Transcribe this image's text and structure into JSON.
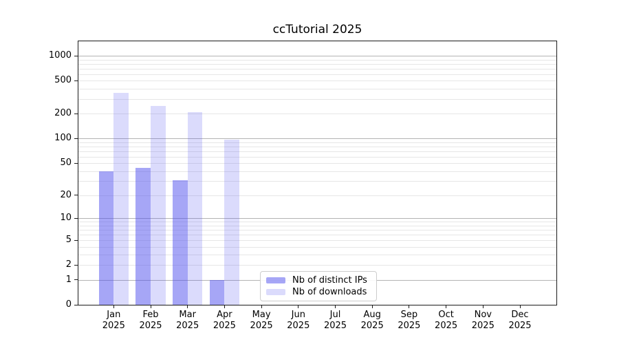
{
  "figure": {
    "background": "#ffffff"
  },
  "chart_data": {
    "type": "bar",
    "title": "ccTutorial 2025",
    "categories": [
      "Jan",
      "Feb",
      "Mar",
      "Apr",
      "May",
      "Jun",
      "Jul",
      "Aug",
      "Sep",
      "Oct",
      "Nov",
      "Dec"
    ],
    "x_tick_second_line": "2025",
    "series": [
      {
        "name": "Nb of distinct IPs",
        "color": "rgba(77,77,238,0.5)",
        "values": [
          40,
          44,
          31,
          1,
          0,
          0,
          0,
          0,
          0,
          0,
          0,
          0
        ]
      },
      {
        "name": "Nb of downloads",
        "color": "rgba(77,77,238,0.2)",
        "values": [
          360,
          250,
          210,
          97,
          0,
          0,
          0,
          0,
          0,
          0,
          0,
          0
        ]
      }
    ],
    "yscale": "log1p",
    "ylim": [
      0,
      1500
    ],
    "yticks": [
      0,
      1,
      2,
      5,
      10,
      20,
      50,
      100,
      200,
      500,
      1000
    ],
    "major_gridlines": [
      1,
      10,
      100,
      1000
    ],
    "minor_gridlines": [
      2,
      3,
      4,
      5,
      6,
      7,
      8,
      9,
      20,
      30,
      40,
      50,
      60,
      70,
      80,
      90,
      200,
      300,
      400,
      500,
      600,
      700,
      800,
      900
    ],
    "grid": true,
    "xlabel": "",
    "ylabel": "",
    "legend": {
      "entries": [
        "Nb of distinct IPs",
        "Nb of downloads"
      ],
      "position": "lower center"
    }
  },
  "colors": {
    "bar_distinct_ips": "rgba(77,77,238,0.5)",
    "bar_downloads": "rgba(77,77,238,0.2)",
    "grid_major": "#b3b3b3",
    "grid_minor": "#e6e6e6",
    "axis": "#1a1a1a",
    "text": "#000000",
    "legend_border": "#cccccc"
  }
}
